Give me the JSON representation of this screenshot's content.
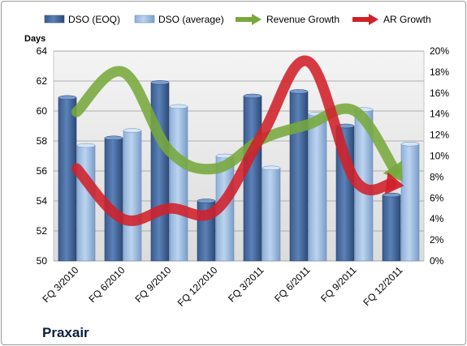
{
  "chart_data": {
    "type": "bar",
    "title": "Praxair",
    "ylabel": "Days",
    "y2label": "",
    "xlabel": "",
    "categories": [
      "FQ 3/2010",
      "FQ 6/2010",
      "FQ 9/2010",
      "FQ 12/2010",
      "FQ 3/2011",
      "FQ 6/2011",
      "FQ 9/2011",
      "FQ 12/2011"
    ],
    "ylim": [
      50,
      64
    ],
    "yticks": [
      "50",
      "52",
      "54",
      "56",
      "58",
      "60",
      "62",
      "64"
    ],
    "y2lim": [
      0,
      20
    ],
    "y2ticks": [
      "0%",
      "2%",
      "4%",
      "6%",
      "8%",
      "10%",
      "12%",
      "14%",
      "16%",
      "18%",
      "20%"
    ],
    "grid": true,
    "legend_position": "top",
    "series": [
      {
        "name": "DSO (EOQ)",
        "kind": "bar",
        "axis": "left",
        "color": "#4a6fa5",
        "values": [
          60.9,
          58.2,
          61.9,
          54.0,
          61.0,
          61.3,
          59.0,
          54.4
        ]
      },
      {
        "name": "DSO (average)",
        "kind": "bar",
        "axis": "left",
        "color": "#9dbde3",
        "values": [
          57.7,
          58.7,
          60.3,
          57.0,
          56.2,
          59.8,
          60.1,
          57.8
        ]
      },
      {
        "name": "Revenue Growth",
        "kind": "line",
        "axis": "right",
        "color": "#77a83c",
        "unit": "%",
        "values": [
          14.2,
          18.0,
          10.5,
          8.8,
          11.6,
          13.0,
          14.3,
          7.8
        ]
      },
      {
        "name": "AR Growth",
        "kind": "line",
        "axis": "right",
        "color": "#d0202a",
        "unit": "%",
        "values": [
          8.8,
          4.0,
          5.0,
          4.8,
          12.0,
          19.0,
          7.8,
          7.2
        ]
      }
    ]
  }
}
